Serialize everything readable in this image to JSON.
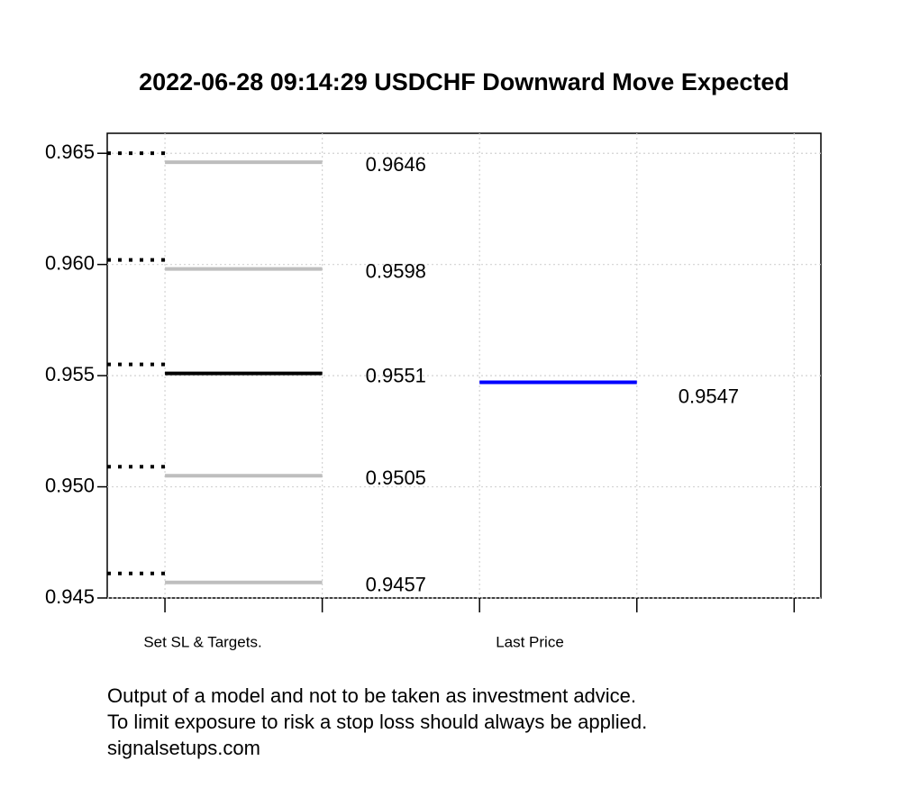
{
  "chart_data": {
    "type": "level",
    "title": "2022-06-28 09:14:29 USDCHF Downward Move Expected",
    "ylim": [
      0.945,
      0.9659
    ],
    "yticks": [
      {
        "value": 0.945,
        "label": "0.945"
      },
      {
        "value": 0.95,
        "label": "0.950"
      },
      {
        "value": 0.955,
        "label": "0.955"
      },
      {
        "value": 0.96,
        "label": "0.960"
      },
      {
        "value": 0.965,
        "label": "0.965"
      }
    ],
    "xlim": [
      0.633,
      5.17
    ],
    "xticks": [
      1,
      2,
      3,
      4,
      5
    ],
    "grid": true,
    "series": [
      {
        "name": "Set SL & Targets.",
        "colors": [
          "#bebebe",
          "#bebebe",
          "#000000",
          "#bebebe",
          "#bebebe"
        ],
        "values": [
          0.9646,
          0.9598,
          0.9551,
          0.9505,
          0.9457
        ]
      },
      {
        "name": "Last Price",
        "color": "#0000ff",
        "values": [
          0.9547
        ]
      }
    ],
    "notes": [
      "Output of a model and not to be taken as investment advice.",
      "To limit exposure to risk a stop loss should always be applied.",
      "signalsetups.com"
    ]
  }
}
